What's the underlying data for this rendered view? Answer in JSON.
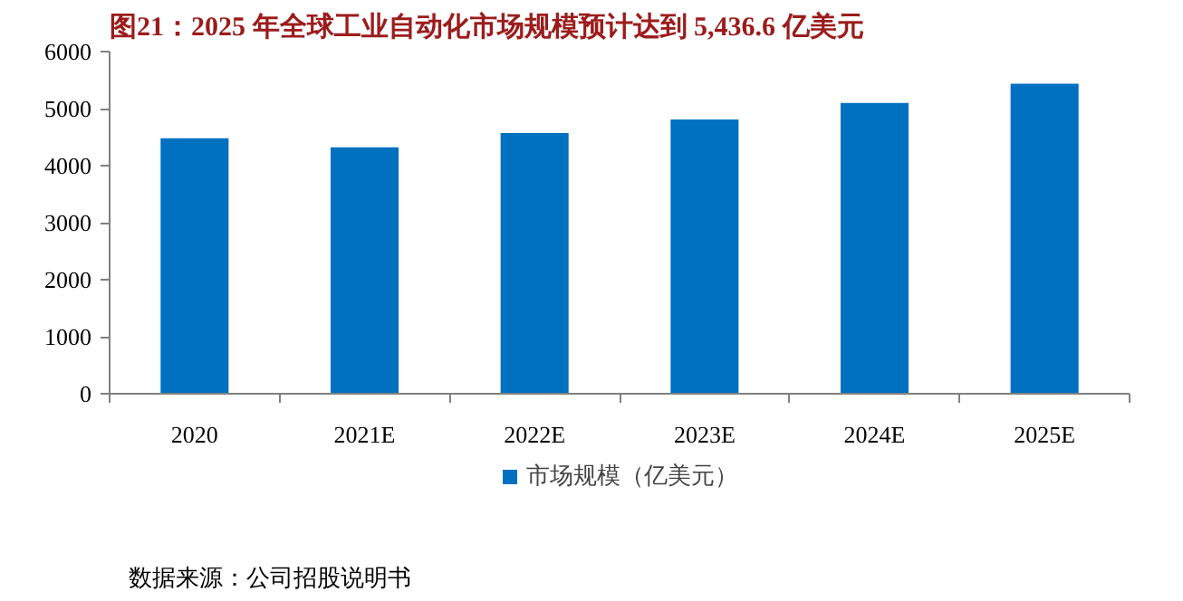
{
  "chart_data": {
    "type": "bar",
    "title": "图21：2025 年全球工业自动化市场规模预计达到 5,436.6 亿美元",
    "categories": [
      "2020",
      "2021E",
      "2022E",
      "2023E",
      "2024E",
      "2025E"
    ],
    "series": [
      {
        "name": "市场规模（亿美元）",
        "color": "#0070c0",
        "values": [
          4480,
          4320,
          4570,
          4810,
          5100,
          5436.6
        ]
      }
    ],
    "ylim": [
      0,
      6000
    ],
    "yticks": [
      0,
      1000,
      2000,
      3000,
      4000,
      5000,
      6000
    ],
    "grid": false,
    "legend": "bottom",
    "annotations": [
      "数据来源：公司招股说明书"
    ]
  }
}
